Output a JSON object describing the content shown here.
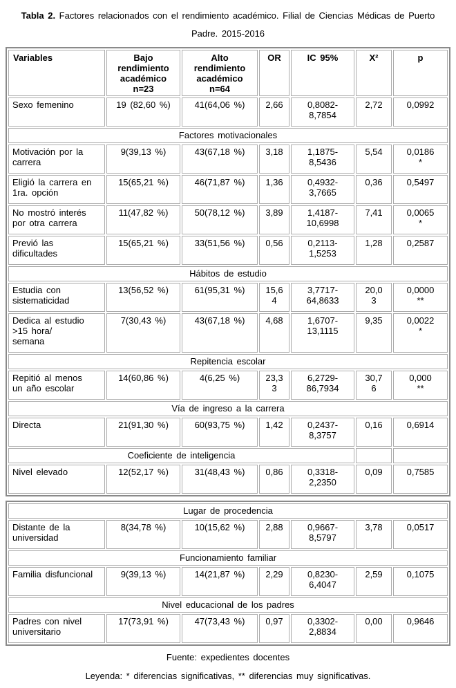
{
  "title": {
    "bold": "Tabla 2.",
    "text": " Factores relacionados con el rendimiento académico. Filial de Ciencias Médicas de Puerto Padre. 2015-2016"
  },
  "columns": [
    {
      "label": "Variables"
    },
    {
      "label": "Bajo rendimiento académico",
      "sub": "n=23"
    },
    {
      "label": "Alto rendimiento académico",
      "sub": "n=64"
    },
    {
      "label": "OR"
    },
    {
      "label": "IC 95%"
    },
    {
      "label": "X²"
    },
    {
      "label": "p"
    }
  ],
  "table1": {
    "rows": [
      {
        "variable": "Sexo femenino",
        "bajo": "19 (82,60 %)",
        "alto": "41(64,06 %)",
        "or": "2,66",
        "ic": "0,8082-8,7854",
        "x2": "2,72",
        "p": "0,0992",
        "sig": ""
      },
      {
        "section": "Factores motivacionales",
        "span": 7
      },
      {
        "variable": "Motivación por la carrera",
        "bajo": "9(39,13 %)",
        "alto": "43(67,18 %)",
        "or": "3,18",
        "ic": "1,1875-8,5436",
        "x2": "5,54",
        "p": "0,0186",
        "sig": "*"
      },
      {
        "variable": "Eligió la carrera en 1ra. opción",
        "bajo": "15(65,21 %)",
        "alto": "46(71,87 %)",
        "or": "1,36",
        "ic": "0,4932-3,7665",
        "x2": "0,36",
        "p": "0,5497",
        "sig": ""
      },
      {
        "variable": "No mostró interés por otra carrera",
        "bajo": "11(47,82 %)",
        "alto": "50(78,12 %)",
        "or": "3,89",
        "ic": "1,4187-10,6998",
        "x2": "7,41",
        "p": "0,0065",
        "sig": "*"
      },
      {
        "variable": "Previó las dificultades",
        "bajo": "15(65,21 %)",
        "alto": "33(51,56 %)",
        "or": "0,56",
        "ic": "0,2113-1,5253",
        "x2": "1,28",
        "p": "0,2587",
        "sig": ""
      },
      {
        "section": "Hábitos de estudio",
        "span": 7
      },
      {
        "variable": "Estudia con sistematicidad",
        "bajo": "13(56,52 %)",
        "alto": "61(95,31 %)",
        "or": "15,64",
        "ic": "3,7717-64,8633",
        "x2": "20,03",
        "p": "0,0000",
        "sig": "**"
      },
      {
        "variable": "Dedica al estudio >15 hora/\nsemana",
        "bajo": "7(30,43 %)",
        "alto": "43(67,18 %)",
        "or": "4,68",
        "ic": "1,6707-13,1115",
        "x2": "9,35",
        "p": "0,0022",
        "sig": "*"
      },
      {
        "section": "Repitencia escolar",
        "span": 7
      },
      {
        "variable": "Repitió al menos un año escolar",
        "bajo": "14(60,86 %)",
        "alto": "4(6,25 %)",
        "or": "23,33",
        "ic": "6,2729-86,7934",
        "x2": "30,76",
        "p": "0,000",
        "sig": "**"
      },
      {
        "section": "Vía de ingreso a la carrera",
        "span": 7
      },
      {
        "variable": "Directa",
        "bajo": "21(91,30 %)",
        "alto": "60(93,75 %)",
        "or": "1,42",
        "ic": "0,2437-8,3757",
        "x2": "0,16",
        "p": "0,6914",
        "sig": ""
      },
      {
        "section": "Coeficiente de inteligencia",
        "span": 5
      },
      {
        "variable": "Nivel elevado",
        "bajo": "12(52,17 %)",
        "alto": "31(48,43 %)",
        "or": "0,86",
        "ic": "0,3318-2,2350",
        "x2": "0,09",
        "p": "0,7585",
        "sig": ""
      }
    ]
  },
  "table2": {
    "rows": [
      {
        "section": "Lugar de procedencia",
        "span": 7
      },
      {
        "variable": "Distante de la universidad",
        "bajo": "8(34,78 %)",
        "alto": "10(15,62 %)",
        "or": "2,88",
        "ic": "0,9667-8,5797",
        "x2": "3,78",
        "p": "0,0517",
        "sig": ""
      },
      {
        "section": "Funcionamiento familiar",
        "span": 7
      },
      {
        "variable": "Familia disfuncional",
        "bajo": "9(39,13 %)",
        "alto": "14(21,87 %)",
        "or": "2,29",
        "ic": "0,8230-6,4047",
        "x2": "2,59",
        "p": "0,1075",
        "sig": ""
      },
      {
        "section": "Nivel educacional de los padres",
        "span": 7
      },
      {
        "variable": "Padres con nivel universitario",
        "bajo": "17(73,91 %)",
        "alto": "47(73,43 %)",
        "or": "0,97",
        "ic": "0,3302-2,8834",
        "x2": "0,00",
        "p": "0,9646",
        "sig": ""
      }
    ]
  },
  "footer": {
    "fuente": "Fuente: expedientes docentes",
    "leyenda": "Leyenda: * diferencias significativas, ** diferencias muy significativas."
  }
}
